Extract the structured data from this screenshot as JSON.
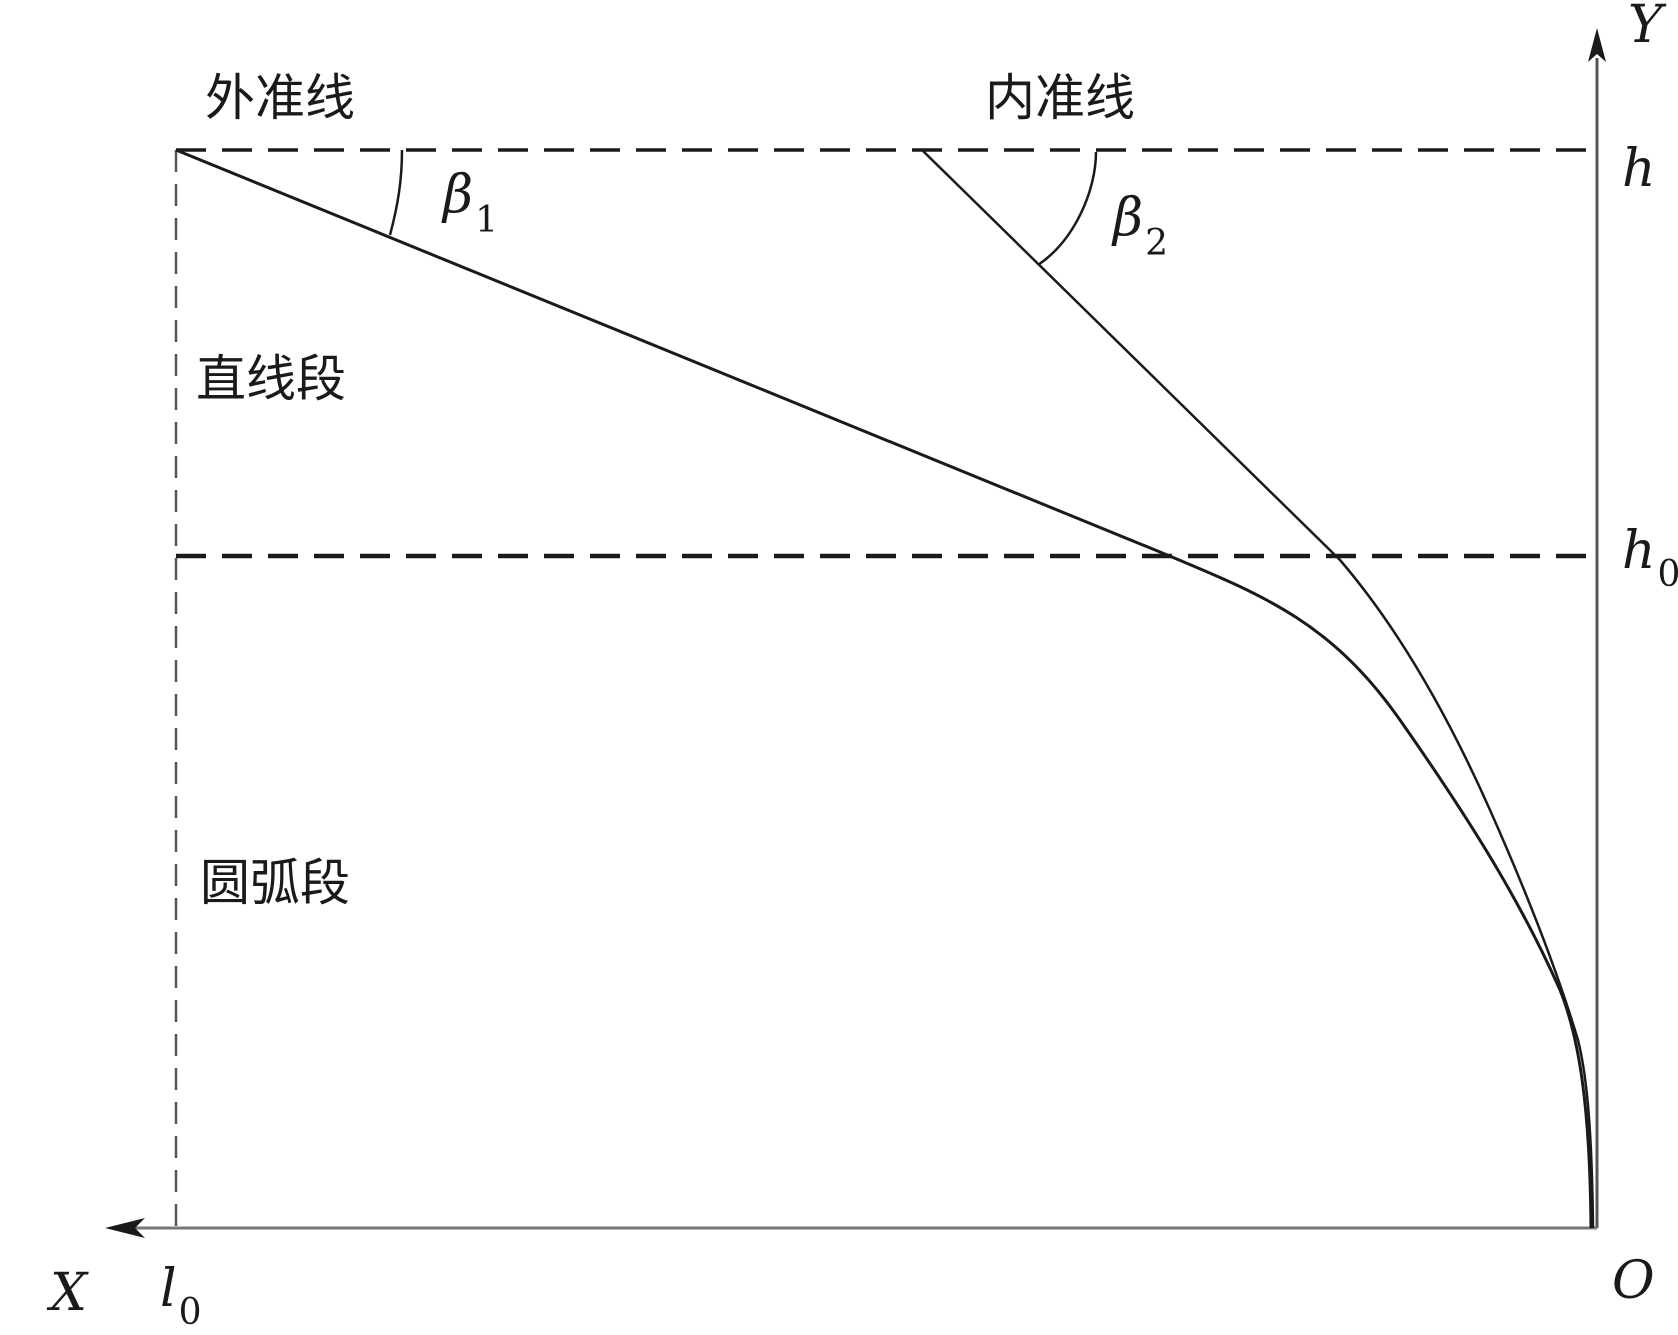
{
  "labels": {
    "outer_line": "外准线",
    "inner_line": "内准线",
    "straight_segment": "直线段",
    "arc_segment": "圆弧段"
  },
  "math": {
    "beta1": {
      "base": "β",
      "sub": "1"
    },
    "beta2": {
      "base": "β",
      "sub": "2"
    },
    "h": "h",
    "h0": {
      "base": "h",
      "sub": "0"
    },
    "y_axis": "Y",
    "x_axis": "X",
    "origin": "O",
    "l0": {
      "base": "l",
      "sub": "0"
    }
  },
  "colors": {
    "stroke": "#1a1a1a",
    "dash_light": "#666666",
    "axis": "#555555",
    "background": "#ffffff"
  }
}
